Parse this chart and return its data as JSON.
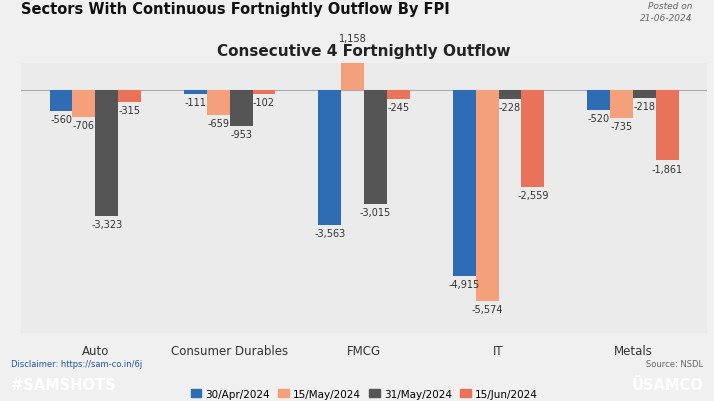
{
  "title_main": "Sectors With Continuous Fortnightly Outflow By FPI",
  "title_chart": "Consecutive 4 Fortnightly Outflow",
  "posted_on": "Posted on\n21-06-2024",
  "source": "Source: NSDL",
  "disclaimer": "Disclaimer: https://sam-co.in/6j",
  "categories": [
    "Auto",
    "Consumer Durables",
    "FMCG",
    "IT",
    "Metals"
  ],
  "series": [
    {
      "label": "30/Apr/2024",
      "color": "#2e6db4",
      "values": [
        -560,
        -111,
        -3563,
        -4915,
        -520
      ]
    },
    {
      "label": "15/May/2024",
      "color": "#f4a07a",
      "values": [
        -706,
        -659,
        1158,
        -5574,
        -735
      ]
    },
    {
      "label": "31/May/2024",
      "color": "#555555",
      "values": [
        -3323,
        -953,
        -3015,
        -228,
        -218
      ]
    },
    {
      "label": "15/Jun/2024",
      "color": "#e8735a",
      "values": [
        -315,
        -102,
        -245,
        -2559,
        -1861
      ]
    }
  ],
  "outer_bg": "#f0f0f0",
  "chart_bg": "#ebebeb",
  "footer_color": "#e8735a",
  "footer_text": "#SAMSHOTS",
  "footer_logo": "ÜSAMCO",
  "bar_width": 0.17,
  "ylim": [
    -6400,
    700
  ],
  "label_fontsize": 7.0,
  "axis_label_fontsize": 8.5
}
